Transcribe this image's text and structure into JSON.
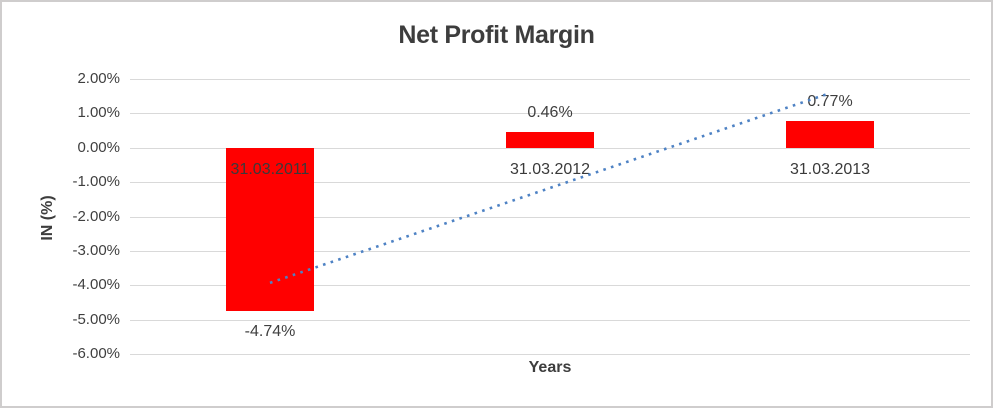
{
  "chart_data": {
    "type": "bar",
    "title": "Net Profit Margin",
    "xlabel": "Years",
    "ylabel": "IN (%)",
    "categories": [
      "31.03.2011",
      "31.03.2012",
      "31.03.2013"
    ],
    "values": [
      -4.74,
      0.46,
      0.77
    ],
    "data_labels": [
      "-4.74%",
      "0.46%",
      "0.77%"
    ],
    "ylim": [
      -6,
      2
    ],
    "ytick_step": 1,
    "ytick_labels": [
      "2.00%",
      "1.00%",
      "0.00%",
      "-1.00%",
      "-2.00%",
      "-3.00%",
      "-4.00%",
      "-5.00%",
      "-6.00%"
    ],
    "grid": true,
    "legend": "none",
    "trendline": {
      "type": "linear",
      "style": "dotted",
      "start_value": -3.93,
      "end_value": 1.59
    },
    "colors": {
      "bar": "#ff0000",
      "trendline": "#4e82c4",
      "gridline": "#d9d9d9",
      "text": "#3f3f3f",
      "border": "#cfcdcd",
      "background": "#ffffff"
    }
  }
}
